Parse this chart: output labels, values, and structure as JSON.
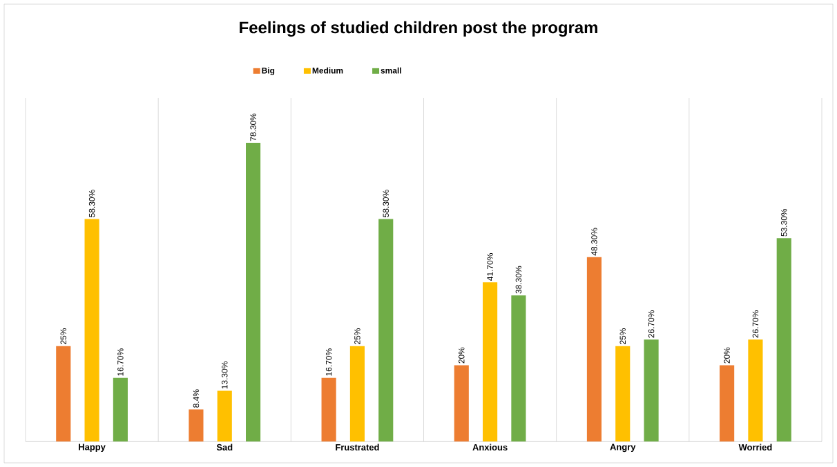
{
  "chart_data": {
    "type": "bar",
    "title": "Feelings of studied children post the program",
    "categories": [
      "Happy",
      "Sad",
      "Frustrated",
      "Anxious",
      "Angry",
      "Worried"
    ],
    "series": [
      {
        "name": "Big",
        "color": "#ed7d31",
        "values": [
          25,
          8.4,
          16.7,
          20,
          48.3,
          20
        ],
        "value_labels": [
          "25%",
          "8.4%",
          "16.70%",
          "20%",
          "48.30%",
          "20%"
        ]
      },
      {
        "name": "Medium",
        "color": "#ffc000",
        "values": [
          58.3,
          13.3,
          25,
          41.7,
          25,
          26.7
        ],
        "value_labels": [
          "58.30%",
          "13.30%",
          "25%",
          "41.70%",
          "25%",
          "26.70%"
        ]
      },
      {
        "name": "small",
        "color": "#70ad47",
        "values": [
          16.7,
          78.3,
          58.3,
          38.3,
          26.7,
          53.3
        ],
        "value_labels": [
          "16.70%",
          "78.30%",
          "58.30%",
          "38.30%",
          "26.70%",
          "53.30%"
        ]
      }
    ],
    "legend": "top",
    "grid": "x"
  }
}
